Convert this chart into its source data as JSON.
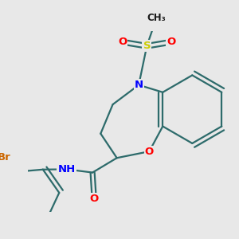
{
  "bg_color": "#e8e8e8",
  "bond_color": "#2d6b6b",
  "bond_width": 1.6,
  "atom_colors": {
    "N": "#0000ff",
    "O": "#ff0000",
    "S": "#cccc00",
    "Br": "#cc6600",
    "C": "#1a1a1a",
    "H": "#2d6b6b"
  },
  "font_size": 9.5,
  "small_font": 8.5
}
